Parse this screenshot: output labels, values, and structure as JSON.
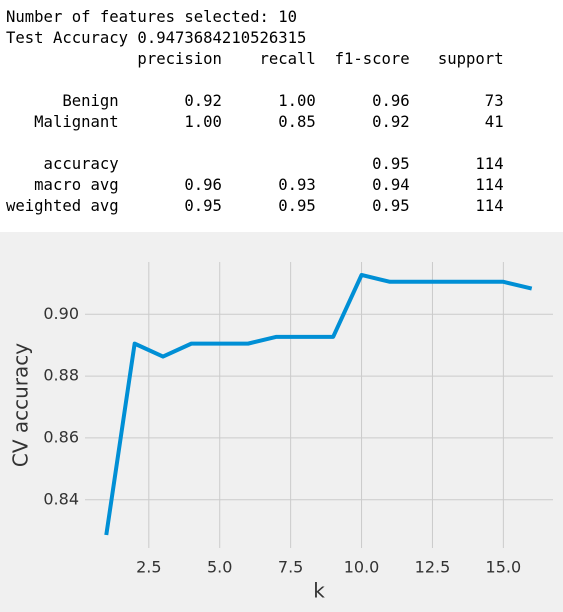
{
  "output": {
    "lines": [
      "Number of features selected: 10",
      "Test Accuracy 0.9473684210526315"
    ],
    "report": {
      "header": "              precision    recall  f1-score   support",
      "classes": [
        "      Benign       0.92      1.00      0.96        73",
        "   Malignant       1.00      0.85      0.92        41"
      ],
      "summary": [
        "    accuracy                           0.95       114",
        "   macro avg       0.96      0.93      0.94       114",
        "weighted avg       0.95      0.95      0.95       114"
      ]
    }
  },
  "chart_data": {
    "type": "line",
    "xlabel": "k",
    "ylabel": "CV accuracy",
    "x": [
      1,
      2,
      3,
      4,
      5,
      6,
      7,
      8,
      9,
      10,
      11,
      12,
      13,
      14,
      15,
      16
    ],
    "values": [
      0.8286,
      0.8905,
      0.8863,
      0.8905,
      0.8905,
      0.8905,
      0.8927,
      0.8927,
      0.8927,
      0.9127,
      0.9105,
      0.9105,
      0.9105,
      0.9105,
      0.9105,
      0.9083
    ],
    "color": "#008fd5",
    "xlim": [
      0.25,
      16.75
    ],
    "ylim": [
      0.8244,
      0.9169
    ],
    "xticks": [
      2.5,
      {
        "value": 5,
        "label": "5.0"
      },
      7.5,
      {
        "value": 10,
        "label": "10.0"
      },
      12.5,
      {
        "value": 15,
        "label": "15.0"
      }
    ],
    "yticks": [
      {
        "value": 0.84,
        "label": "0.84"
      },
      {
        "value": 0.86,
        "label": "0.86"
      },
      {
        "value": 0.88,
        "label": "0.88"
      },
      {
        "value": 0.9,
        "label": "0.90"
      }
    ],
    "grid": true
  }
}
